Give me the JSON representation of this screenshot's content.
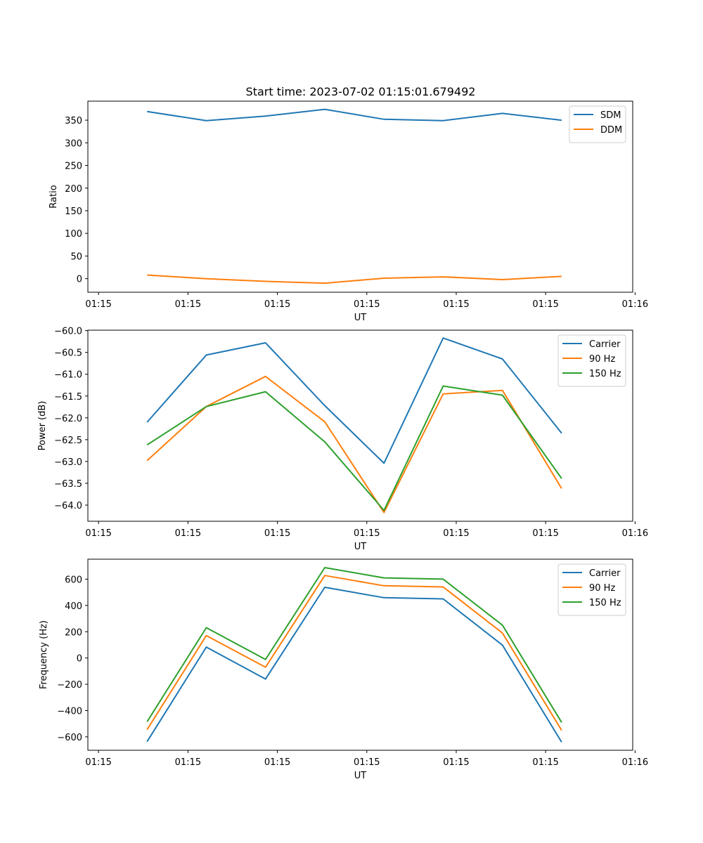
{
  "figure_title": "Start time: 2023-07-02 01:15:01.679492",
  "chart_data": [
    {
      "type": "line",
      "title": "Start time: 2023-07-02 01:15:01.679492",
      "xlabel": "UT",
      "ylabel": "Ratio",
      "x": [
        1,
        2,
        3,
        4,
        5,
        6,
        7,
        8
      ],
      "xlim": [
        0,
        9.2
      ],
      "xticks": [
        0.18,
        1.69,
        3.2,
        4.71,
        6.22,
        7.73,
        9.24
      ],
      "xtick_labels": [
        "01:15",
        "01:15",
        "01:15",
        "01:15",
        "01:15",
        "01:15",
        "01:16"
      ],
      "ylim": [
        -30,
        392
      ],
      "yticks": [
        0,
        50,
        100,
        150,
        200,
        250,
        300,
        350
      ],
      "ytick_labels": [
        "0",
        "50",
        "100",
        "150",
        "200",
        "250",
        "300",
        "350"
      ],
      "legend": "top-right",
      "series": [
        {
          "name": "SDM",
          "color": "#1f77b4",
          "values": [
            369,
            349,
            359,
            374,
            352,
            349,
            365,
            350
          ]
        },
        {
          "name": "DDM",
          "color": "#ff7f0e",
          "values": [
            8,
            0,
            -6,
            -10,
            1,
            4,
            -2,
            5
          ]
        }
      ]
    },
    {
      "type": "line",
      "title": "",
      "xlabel": "UT",
      "ylabel": "Power (dB)",
      "x": [
        1,
        2,
        3,
        4,
        5,
        6,
        7,
        8
      ],
      "xlim": [
        0,
        9.2
      ],
      "xticks": [
        0.18,
        1.69,
        3.2,
        4.71,
        6.22,
        7.73,
        9.24
      ],
      "xtick_labels": [
        "01:15",
        "01:15",
        "01:15",
        "01:15",
        "01:15",
        "01:15",
        "01:16"
      ],
      "ylim": [
        -64.37,
        -59.99
      ],
      "yticks": [
        -60.0,
        -60.5,
        -61.0,
        -61.5,
        -62.0,
        -62.5,
        -63.0,
        -63.5,
        -64.0
      ],
      "ytick_labels": [
        "−60.0",
        "−60.5",
        "−61.0",
        "−61.5",
        "−62.0",
        "−62.5",
        "−63.0",
        "−63.5",
        "−64.0"
      ],
      "legend": "top-right",
      "series": [
        {
          "name": "Carrier",
          "color": "#1f77b4",
          "values": [
            -62.1,
            -60.56,
            -60.28,
            -61.72,
            -63.04,
            -60.17,
            -60.65,
            -62.35
          ]
        },
        {
          "name": "90 Hz",
          "color": "#ff7f0e",
          "values": [
            -62.98,
            -61.74,
            -61.05,
            -62.09,
            -64.17,
            -61.45,
            -61.37,
            -63.62
          ]
        },
        {
          "name": "150 Hz",
          "color": "#2ca02c",
          "values": [
            -62.62,
            -61.74,
            -61.4,
            -62.55,
            -64.12,
            -61.27,
            -61.48,
            -63.39
          ]
        }
      ]
    },
    {
      "type": "line",
      "title": "",
      "xlabel": "UT",
      "ylabel": "Frequency (Hz)",
      "x": [
        1,
        2,
        3,
        4,
        5,
        6,
        7,
        8
      ],
      "xlim": [
        0,
        9.2
      ],
      "xticks": [
        0.18,
        1.69,
        3.2,
        4.71,
        6.22,
        7.73,
        9.24
      ],
      "xtick_labels": [
        "01:15",
        "01:15",
        "01:15",
        "01:15",
        "01:15",
        "01:15",
        "01:16"
      ],
      "ylim": [
        -702,
        752
      ],
      "yticks": [
        -600,
        -400,
        -200,
        0,
        200,
        400,
        600
      ],
      "ytick_labels": [
        "−600",
        "−400",
        "−200",
        "0",
        "200",
        "400",
        "600"
      ],
      "legend": "top-right",
      "series": [
        {
          "name": "Carrier",
          "color": "#1f77b4",
          "values": [
            -636,
            83,
            -160,
            538,
            459,
            450,
            98,
            -640
          ]
        },
        {
          "name": "90 Hz",
          "color": "#ff7f0e",
          "values": [
            -545,
            171,
            -70,
            628,
            550,
            541,
            190,
            -550
          ]
        },
        {
          "name": "150 Hz",
          "color": "#2ca02c",
          "values": [
            -485,
            231,
            -11,
            688,
            610,
            600,
            250,
            -490
          ]
        }
      ]
    }
  ]
}
